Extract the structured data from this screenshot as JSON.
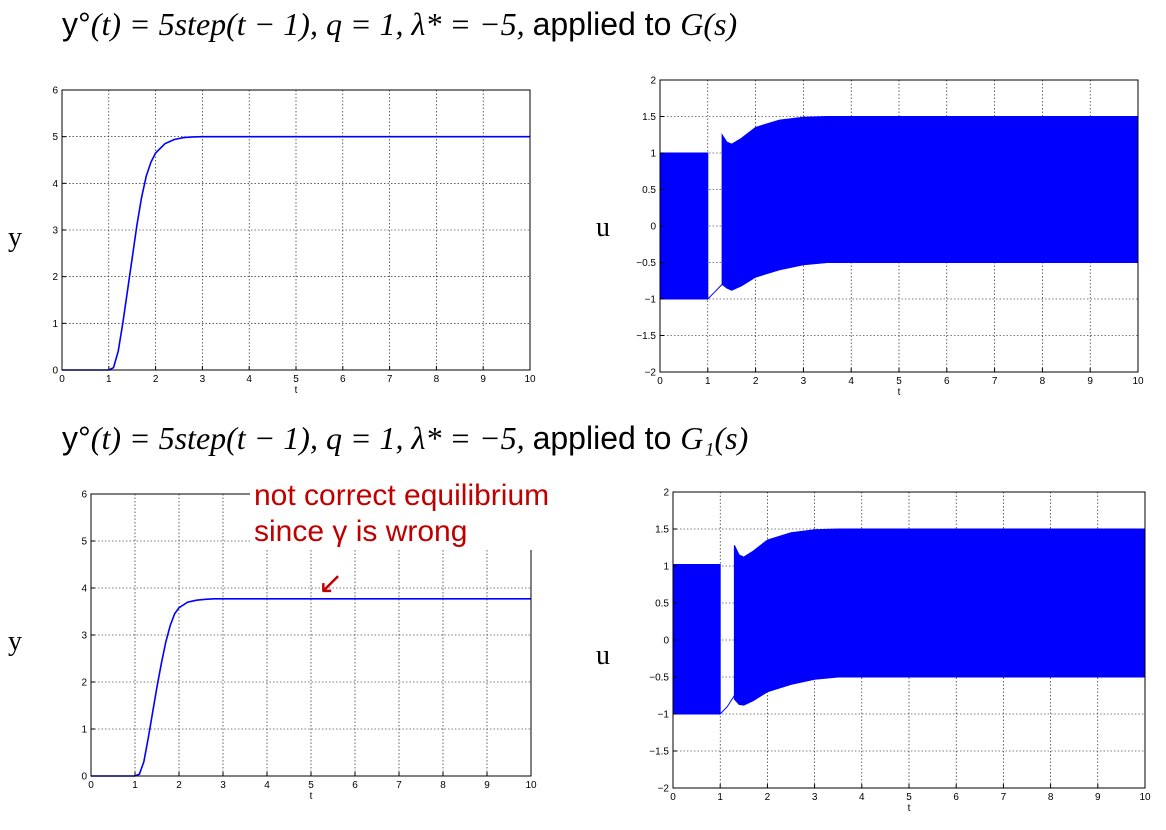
{
  "titles": {
    "top": {
      "prefix": "y°",
      "t_expr": "(t) = 5step(t − 1), q = 1, λ* = −5, ",
      "applied": "applied to ",
      "sys": "G(s)"
    },
    "bottom": {
      "prefix": "y°",
      "t_expr": "(t) = 5step(t − 1), q = 1, λ* = −5, ",
      "applied": "applied to ",
      "sys": "G₁(s)"
    }
  },
  "side_labels": {
    "y_top": "y",
    "u_top": "u",
    "y_bottom": "y",
    "u_bottom": "u"
  },
  "annotation": {
    "line1": "not correct equilibrium",
    "line2": "since γ is wrong",
    "arrow": "↙"
  },
  "colors": {
    "series": "#0000ff",
    "annotation": "#c00000",
    "grid": "#000000"
  },
  "chart_data": [
    {
      "type": "line",
      "xlabel": "t",
      "ylabel": "",
      "xlim": [
        0,
        10
      ],
      "ylim": [
        0,
        6
      ],
      "xticks": [
        "0",
        "1",
        "2",
        "3",
        "4",
        "5",
        "6",
        "7",
        "8",
        "9",
        "10"
      ],
      "yticks": [
        "0",
        "1",
        "2",
        "3",
        "4",
        "5",
        "6"
      ],
      "grid": true,
      "series": [
        {
          "x": [
            0,
            1,
            1.1,
            1.2,
            1.3,
            1.4,
            1.5,
            1.6,
            1.7,
            1.8,
            1.9,
            2.0,
            2.2,
            2.4,
            2.6,
            2.8,
            3.0,
            10
          ],
          "values": [
            0,
            0,
            0.05,
            0.4,
            1.0,
            1.7,
            2.4,
            3.1,
            3.7,
            4.15,
            4.45,
            4.65,
            4.85,
            4.94,
            4.98,
            4.995,
            5.0,
            5.0
          ]
        }
      ]
    },
    {
      "type": "area",
      "xlabel": "t",
      "ylabel": "",
      "xlim": [
        0,
        10
      ],
      "ylim": [
        -2,
        2
      ],
      "xticks": [
        "0",
        "1",
        "2",
        "3",
        "4",
        "5",
        "6",
        "7",
        "8",
        "9",
        "10"
      ],
      "yticks": [
        "−2",
        "−1.5",
        "−1",
        "−0.5",
        "0",
        "0.5",
        "1",
        "1.5",
        "2"
      ],
      "grid": true,
      "band": {
        "x": [
          0,
          1.0,
          1.0,
          1.15,
          1.3,
          1.3,
          1.4,
          1.5,
          1.7,
          2.0,
          2.5,
          3.0,
          3.5,
          10
        ],
        "upper": [
          1.0,
          1.0,
          -1.0,
          -0.9,
          -0.8,
          1.25,
          1.15,
          1.12,
          1.2,
          1.35,
          1.45,
          1.49,
          1.5,
          1.5
        ],
        "lower": [
          -1.0,
          -1.0,
          -1.0,
          -0.9,
          -0.8,
          -0.8,
          -0.85,
          -0.88,
          -0.82,
          -0.7,
          -0.6,
          -0.53,
          -0.5,
          -0.5
        ]
      }
    },
    {
      "type": "line",
      "xlabel": "t",
      "ylabel": "",
      "xlim": [
        0,
        10
      ],
      "ylim": [
        0,
        6
      ],
      "xticks": [
        "0",
        "1",
        "2",
        "3",
        "4",
        "5",
        "6",
        "7",
        "8",
        "9",
        "10"
      ],
      "yticks": [
        "0",
        "1",
        "2",
        "3",
        "4",
        "5",
        "6"
      ],
      "grid": true,
      "series": [
        {
          "x": [
            0,
            1,
            1.1,
            1.2,
            1.3,
            1.4,
            1.5,
            1.6,
            1.7,
            1.8,
            1.9,
            2.0,
            2.2,
            2.4,
            2.6,
            2.8,
            3.0,
            10
          ],
          "values": [
            0,
            0,
            0.04,
            0.3,
            0.8,
            1.35,
            1.9,
            2.4,
            2.85,
            3.2,
            3.45,
            3.58,
            3.7,
            3.74,
            3.76,
            3.77,
            3.77,
            3.77
          ]
        }
      ]
    },
    {
      "type": "area",
      "xlabel": "t",
      "ylabel": "",
      "xlim": [
        0,
        10
      ],
      "ylim": [
        -2,
        2
      ],
      "xticks": [
        "0",
        "1",
        "2",
        "3",
        "4",
        "5",
        "6",
        "7",
        "8",
        "9",
        "10"
      ],
      "yticks": [
        "−2",
        "−1.5",
        "−1",
        "−0.5",
        "0",
        "0.5",
        "1",
        "1.5",
        "2"
      ],
      "grid": true,
      "band": {
        "x": [
          0,
          1.0,
          1.0,
          1.15,
          1.3,
          1.3,
          1.4,
          1.5,
          1.7,
          2.0,
          2.5,
          3.0,
          3.5,
          10
        ],
        "upper": [
          1.02,
          1.02,
          -1.0,
          -0.9,
          -0.75,
          1.28,
          1.15,
          1.12,
          1.2,
          1.35,
          1.45,
          1.49,
          1.5,
          1.5
        ],
        "lower": [
          -1.0,
          -1.0,
          -1.0,
          -0.9,
          -0.75,
          -0.8,
          -0.87,
          -0.88,
          -0.82,
          -0.7,
          -0.6,
          -0.53,
          -0.5,
          -0.5
        ]
      }
    }
  ]
}
